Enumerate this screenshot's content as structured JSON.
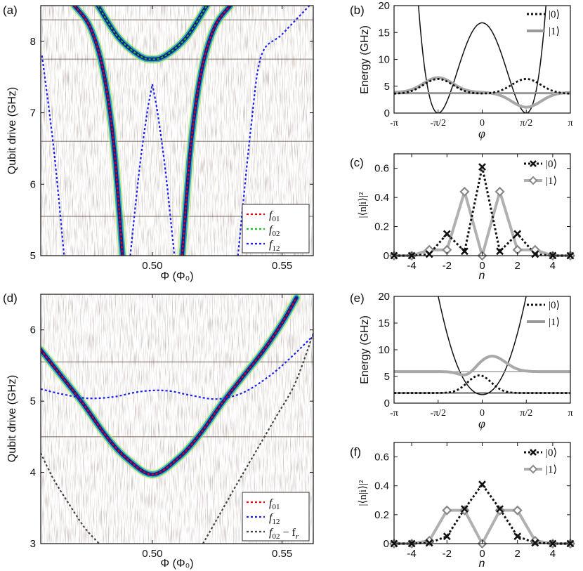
{
  "chart_data": [
    {
      "panel": "(a)",
      "type": "heatmap",
      "xlabel": "Φ (Φ₀)",
      "ylabel": "Qubit drive (GHz)",
      "xlim": [
        0.457,
        0.562
      ],
      "ylim": [
        5.0,
        8.5
      ],
      "xticks": [
        0.5,
        0.55
      ],
      "xtick_labels": [
        "0.50",
        "0.55"
      ],
      "yticks": [
        5,
        6,
        7,
        8
      ],
      "ytick_labels": [
        "5",
        "6",
        "7",
        "8"
      ],
      "legend_position": "bottom-right",
      "series": [
        {
          "name": "f01",
          "label": "f",
          "sub": "01",
          "color": "#e8000b",
          "curves": [
            {
              "x": [
                0.47,
                0.476,
                0.481,
                0.485,
                0.4885
              ],
              "y": [
                8.5,
                8.2,
                7.6,
                6.6,
                5.0
              ]
            },
            {
              "x": [
                0.5115,
                0.515,
                0.519,
                0.524,
                0.53
              ],
              "y": [
                5.0,
                6.6,
                7.6,
                8.2,
                8.5
              ]
            }
          ]
        },
        {
          "name": "f02",
          "label": "f",
          "sub": "02",
          "color": "#18c51a",
          "curves": [
            {
              "x": [
                0.479,
                0.487,
                0.495,
                0.5,
                0.505,
                0.513,
                0.521
              ],
              "y": [
                8.5,
                8.05,
                7.8,
                7.75,
                7.8,
                8.05,
                8.5
              ]
            }
          ]
        },
        {
          "name": "f12",
          "label": "f",
          "sub": "12",
          "color": "#1a20ee",
          "curves": [
            {
              "x": [
                0.4575,
                0.462,
                0.466
              ],
              "y": [
                7.8,
                6.5,
                5.0
              ]
            },
            {
              "x": [
                0.4915,
                0.495,
                0.498,
                0.5
              ],
              "y": [
                5.0,
                6.2,
                7.0,
                7.4
              ]
            },
            {
              "x": [
                0.5,
                0.502,
                0.505,
                0.5085
              ],
              "y": [
                7.4,
                7.0,
                6.2,
                5.0
              ]
            },
            {
              "x": [
                0.533,
                0.538,
                0.542,
                0.55,
                0.5605
              ],
              "y": [
                5.0,
                6.8,
                7.8,
                8.1,
                8.5
              ]
            }
          ]
        }
      ],
      "spectral_lines_y": [
        8.3,
        7.75,
        6.6,
        5.55
      ]
    },
    {
      "panel": "(b)",
      "type": "line",
      "xlabel": "φ",
      "ylabel": "Energy (GHz)",
      "xlim": [
        -3.1416,
        3.1416
      ],
      "ylim": [
        0,
        20
      ],
      "xtick_labels": [
        "-π",
        "-π/2",
        "0",
        "π/2",
        "π"
      ],
      "yticks": [
        0,
        5,
        10,
        15,
        20
      ],
      "ytick_labels": [
        "0",
        "5",
        "10",
        "15",
        "20"
      ],
      "legend_position": "top-right",
      "potential_peak": 16.8,
      "levels": [
        3.6,
        3.85
      ],
      "series": [
        {
          "name": "|0⟩",
          "label": "|0⟩",
          "color": "#111111",
          "style": "dotted"
        },
        {
          "name": "|1⟩",
          "label": "|1⟩",
          "color": "#9a9a9a",
          "style": "solid"
        }
      ]
    },
    {
      "panel": "(c)",
      "type": "line",
      "xlabel": "n",
      "ylabel": "|⟨n|i⟩|²",
      "xlim": [
        -5,
        5
      ],
      "ylim": [
        0,
        0.7
      ],
      "xticks": [
        -4,
        -2,
        0,
        2,
        4
      ],
      "xtick_labels": [
        "-4",
        "-2",
        "0",
        "2",
        "4"
      ],
      "yticks": [
        0,
        0.2,
        0.4,
        0.6
      ],
      "ytick_labels": [
        "0",
        "0.2",
        "0.4",
        "0.6"
      ],
      "legend_position": "top-right",
      "x": [
        -5,
        -4,
        -3,
        -2,
        -1,
        0,
        1,
        2,
        3,
        4,
        5
      ],
      "series": [
        {
          "name": "|0⟩",
          "label": "|0⟩",
          "color": "#111111",
          "values": [
            0.0,
            0.0,
            0.01,
            0.15,
            0.03,
            0.61,
            0.03,
            0.15,
            0.01,
            0.0,
            0.0
          ]
        },
        {
          "name": "|1⟩",
          "label": "|1⟩",
          "color": "#999999",
          "values": [
            0.0,
            0.0,
            0.04,
            0.04,
            0.44,
            0.0,
            0.44,
            0.04,
            0.04,
            0.0,
            0.0
          ]
        }
      ]
    },
    {
      "panel": "(d)",
      "type": "heatmap",
      "xlabel": "Φ (Φ₀)",
      "ylabel": "Qubit drive (GHz)",
      "xlim": [
        0.457,
        0.562
      ],
      "ylim": [
        3.0,
        6.5
      ],
      "xticks": [
        0.5,
        0.55
      ],
      "xtick_labels": [
        "0.50",
        "0.55"
      ],
      "yticks": [
        3,
        4,
        5,
        6
      ],
      "ytick_labels": [
        "3",
        "4",
        "5",
        "6"
      ],
      "legend_position": "bottom-right",
      "series": [
        {
          "name": "f01",
          "label": "f",
          "sub": "01",
          "color": "#e8000b",
          "curves": [
            {
              "x": [
                0.457,
                0.465,
                0.473,
                0.482,
                0.49,
                0.5,
                0.51,
                0.518,
                0.527,
                0.535,
                0.543,
                0.55,
                0.5555
              ],
              "y": [
                5.72,
                5.35,
                4.98,
                4.52,
                4.2,
                3.97,
                4.2,
                4.52,
                4.98,
                5.35,
                5.72,
                6.1,
                6.45
              ]
            }
          ]
        },
        {
          "name": "f12",
          "label": "f",
          "sub": "12",
          "color": "#1a20ee",
          "curves": [
            {
              "x": [
                0.457,
                0.465,
                0.475,
                0.485,
                0.493,
                0.5,
                0.507,
                0.515,
                0.525,
                0.535,
                0.545,
                0.553,
                0.562
              ],
              "y": [
                5.17,
                5.1,
                5.04,
                5.06,
                5.12,
                5.15,
                5.14,
                5.08,
                5.03,
                5.12,
                5.35,
                5.6,
                5.92
              ]
            }
          ]
        },
        {
          "name": "f02 - fr",
          "label": "f",
          "sub": "02",
          "label2": " − f",
          "sub2": "r",
          "color": "#444444",
          "curves": [
            {
              "x": [
                0.457,
                0.462,
                0.468,
                0.474,
                0.4795
              ],
              "y": [
                4.27,
                3.9,
                3.55,
                3.22,
                3.0
              ]
            },
            {
              "x": [
                0.5195,
                0.525,
                0.532,
                0.54,
                0.548,
                0.555,
                0.562
              ],
              "y": [
                3.0,
                3.35,
                3.8,
                4.3,
                4.8,
                5.25,
                5.95
              ]
            }
          ]
        }
      ],
      "spectral_lines_y": [
        5.55,
        4.5
      ]
    },
    {
      "panel": "(e)",
      "type": "line",
      "xlabel": "φ",
      "ylabel": "Energy (GHz)",
      "xlim": [
        -3.1416,
        3.1416
      ],
      "ylim": [
        0,
        20
      ],
      "xtick_labels": [
        "-π",
        "-π/2",
        "0",
        "π/2",
        "π"
      ],
      "yticks": [
        0,
        5,
        10,
        15,
        20
      ],
      "ytick_labels": [
        "0",
        "5",
        "10",
        "15",
        "20"
      ],
      "legend_position": "top-right",
      "levels": [
        1.9,
        5.9
      ],
      "series": [
        {
          "name": "|0⟩",
          "label": "|0⟩",
          "color": "#111111",
          "style": "dotted"
        },
        {
          "name": "|1⟩",
          "label": "|1⟩",
          "color": "#9a9a9a",
          "style": "solid"
        }
      ]
    },
    {
      "panel": "(f)",
      "type": "line",
      "xlabel": "n",
      "ylabel": "|⟨n|i⟩|²",
      "xlim": [
        -5,
        5
      ],
      "ylim": [
        0,
        0.7
      ],
      "xticks": [
        -4,
        -2,
        0,
        2,
        4
      ],
      "xtick_labels": [
        "-4",
        "-2",
        "0",
        "2",
        "4"
      ],
      "yticks": [
        0,
        0.2,
        0.4,
        0.6
      ],
      "ytick_labels": [
        "0",
        "0.2",
        "0.4",
        "0.6"
      ],
      "legend_position": "top-right",
      "x": [
        -5,
        -4,
        -3,
        -2,
        -1,
        0,
        1,
        2,
        3,
        4,
        5
      ],
      "series": [
        {
          "name": "|0⟩",
          "label": "|0⟩",
          "color": "#111111",
          "values": [
            0.0,
            0.0,
            0.005,
            0.05,
            0.24,
            0.41,
            0.24,
            0.05,
            0.005,
            0.0,
            0.0
          ]
        },
        {
          "name": "|1⟩",
          "label": "|1⟩",
          "color": "#999999",
          "values": [
            0.0,
            0.0,
            0.02,
            0.23,
            0.23,
            0.0,
            0.23,
            0.23,
            0.02,
            0.0,
            0.0
          ]
        }
      ]
    }
  ]
}
